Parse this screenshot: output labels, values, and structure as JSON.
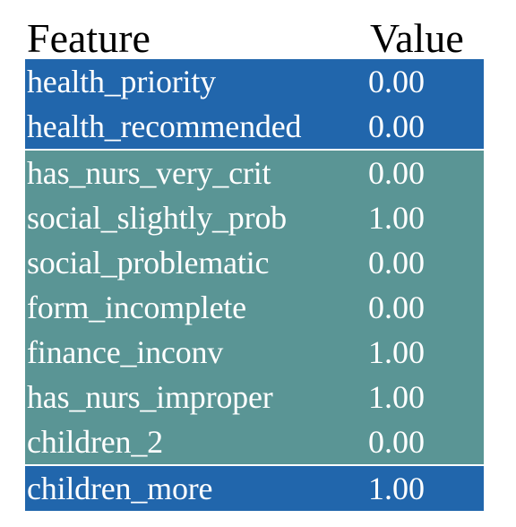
{
  "table": {
    "headers": {
      "feature": "Feature",
      "value": "Value"
    },
    "colors": {
      "blue": "#2166ac",
      "teal": "#5a9595",
      "header_text": "#000000",
      "cell_text": "#ffffff"
    },
    "groups": [
      {
        "color": "#2166ac",
        "rows": [
          {
            "feature": "health_priority",
            "value": "0.00"
          },
          {
            "feature": "health_recommended",
            "value": "0.00"
          }
        ]
      },
      {
        "color": "#5a9595",
        "rows": [
          {
            "feature": "has_nurs_very_crit",
            "value": "0.00"
          },
          {
            "feature": "social_slightly_prob",
            "value": "1.00"
          },
          {
            "feature": "social_problematic",
            "value": "0.00"
          },
          {
            "feature": "form_incomplete",
            "value": "0.00"
          },
          {
            "feature": "finance_inconv",
            "value": "1.00"
          },
          {
            "feature": "has_nurs_improper",
            "value": "1.00"
          },
          {
            "feature": "children_2",
            "value": "0.00"
          }
        ]
      },
      {
        "color": "#2166ac",
        "rows": [
          {
            "feature": "children_more",
            "value": "1.00"
          }
        ]
      }
    ]
  }
}
